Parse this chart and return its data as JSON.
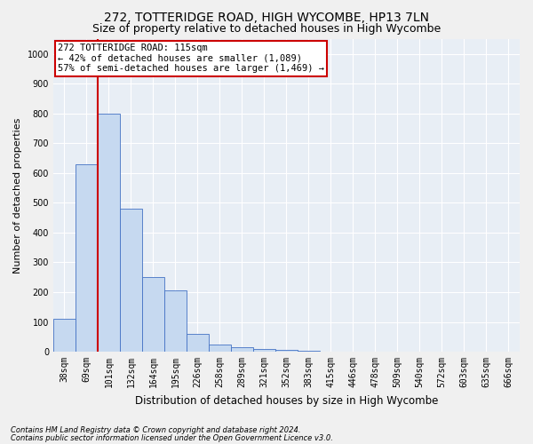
{
  "title": "272, TOTTERIDGE ROAD, HIGH WYCOMBE, HP13 7LN",
  "subtitle": "Size of property relative to detached houses in High Wycombe",
  "xlabel": "Distribution of detached houses by size in High Wycombe",
  "ylabel": "Number of detached properties",
  "footer_line1": "Contains HM Land Registry data © Crown copyright and database right 2024.",
  "footer_line2": "Contains public sector information licensed under the Open Government Licence v3.0.",
  "bin_labels": [
    "38sqm",
    "69sqm",
    "101sqm",
    "132sqm",
    "164sqm",
    "195sqm",
    "226sqm",
    "258sqm",
    "289sqm",
    "321sqm",
    "352sqm",
    "383sqm",
    "415sqm",
    "446sqm",
    "478sqm",
    "509sqm",
    "540sqm",
    "572sqm",
    "603sqm",
    "635sqm",
    "666sqm"
  ],
  "bar_values": [
    110,
    630,
    800,
    480,
    250,
    205,
    60,
    25,
    15,
    10,
    7,
    3,
    1,
    0,
    0,
    0,
    0,
    0,
    0,
    0,
    0
  ],
  "bar_color": "#c6d9f0",
  "bar_edge_color": "#4472c4",
  "property_line_color": "#cc0000",
  "property_line_bin": 2,
  "annotation_text": "272 TOTTERIDGE ROAD: 115sqm\n← 42% of detached houses are smaller (1,089)\n57% of semi-detached houses are larger (1,469) →",
  "annotation_box_color": "#ffffff",
  "annotation_box_edge_color": "#cc0000",
  "ylim": [
    0,
    1050
  ],
  "yticks": [
    0,
    100,
    200,
    300,
    400,
    500,
    600,
    700,
    800,
    900,
    1000
  ],
  "bg_color": "#f0f0f0",
  "plot_bg_color": "#e8eef5",
  "grid_color": "#ffffff",
  "title_fontsize": 10,
  "subtitle_fontsize": 9,
  "axis_label_fontsize": 8.5,
  "tick_fontsize": 7,
  "annotation_fontsize": 7.5,
  "ylabel_fontsize": 8
}
